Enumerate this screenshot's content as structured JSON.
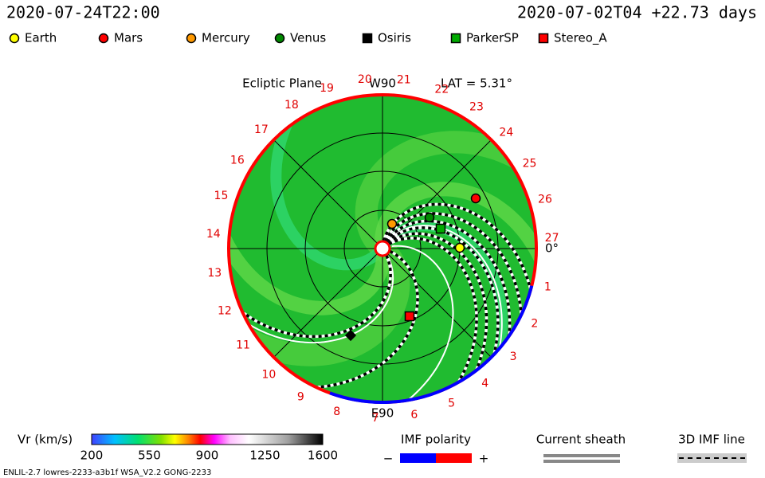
{
  "header": {
    "time": "2020-07-24T22:00",
    "run": "2020-07-02T04 +22.73 days"
  },
  "legend": [
    {
      "name": "Earth",
      "color": "#ffff00",
      "shape": "circle"
    },
    {
      "name": "Mars",
      "color": "#ff0000",
      "shape": "circle"
    },
    {
      "name": "Mercury",
      "color": "#ff9900",
      "shape": "circle"
    },
    {
      "name": "Venus",
      "color": "#008800",
      "shape": "circle"
    },
    {
      "name": "Osiris",
      "color": "#000000",
      "shape": "square"
    },
    {
      "name": "ParkerSP",
      "color": "#00aa00",
      "shape": "square"
    },
    {
      "name": "Stereo_A",
      "color": "#ff0000",
      "shape": "square"
    }
  ],
  "plot": {
    "label": "Ecliptic Plane",
    "top": "W90",
    "lat": "LAT = 5.31°",
    "bottom": "E90",
    "zero": "0°",
    "days": [
      1,
      2,
      3,
      4,
      5,
      6,
      7,
      8,
      9,
      10,
      11,
      12,
      13,
      14,
      15,
      16,
      17,
      18,
      19,
      20,
      21,
      22,
      23,
      24,
      25,
      26,
      27
    ]
  },
  "colorbar": {
    "title": "Vr (km/s)",
    "ticks": [
      200,
      550,
      900,
      1250,
      1600
    ]
  },
  "imf": {
    "title": "IMF polarity",
    "minus": "−",
    "plus": "+"
  },
  "sheath": {
    "title": "Current sheath"
  },
  "line3d": {
    "title": "3D IMF line"
  },
  "footer": "ENLIL-2.7 lowres-2233-a3b1f WSA_V2.2 GONG-2233"
}
